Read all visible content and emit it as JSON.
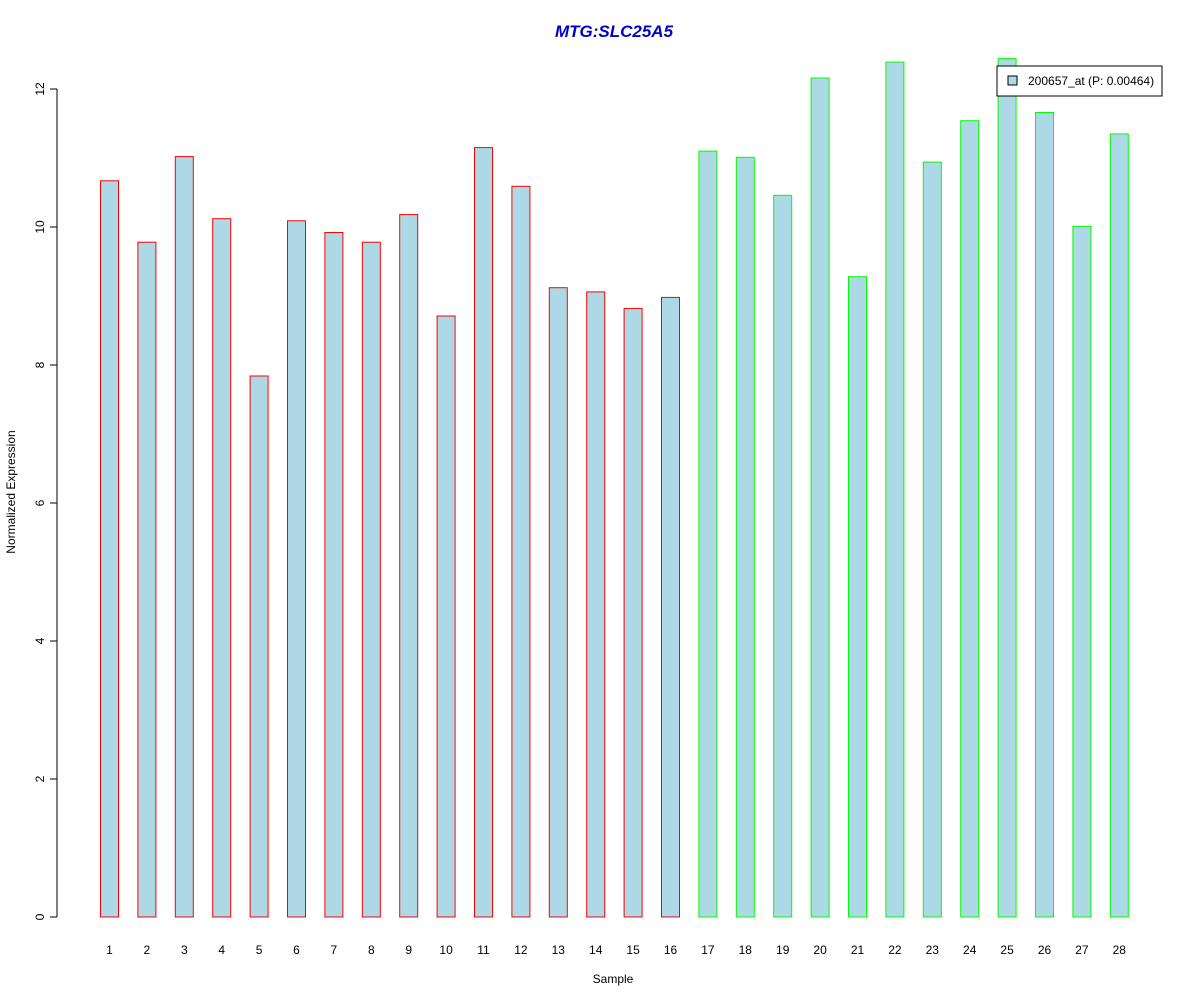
{
  "chart_data": {
    "type": "bar",
    "title": "MTG:SLC25A5",
    "title_color": "#0000CC",
    "xlabel": "Sample",
    "ylabel": "Normalized Expression",
    "ylim": [
      0,
      12.4
    ],
    "yticks": [
      0,
      2,
      4,
      6,
      8,
      10,
      12
    ],
    "grid": false,
    "legend_position": "top-right",
    "categories": [
      "1",
      "2",
      "3",
      "4",
      "5",
      "6",
      "7",
      "8",
      "9",
      "10",
      "11",
      "12",
      "13",
      "14",
      "15",
      "16",
      "17",
      "18",
      "19",
      "20",
      "21",
      "22",
      "23",
      "24",
      "25",
      "26",
      "27",
      "28"
    ],
    "series": [
      {
        "name": "200657_at (P: 0.00464)",
        "fill_color": "#ADD8E6",
        "values": [
          10.67,
          9.78,
          11.02,
          10.12,
          7.84,
          10.09,
          9.92,
          9.78,
          10.18,
          8.71,
          11.15,
          10.59,
          9.12,
          9.06,
          8.82,
          8.98,
          11.1,
          11.01,
          10.46,
          12.16,
          9.28,
          12.39,
          10.94,
          11.54,
          12.44,
          11.66,
          10.01,
          11.35
        ],
        "border_colors": [
          "#FF0000",
          "#FF0000",
          "#FF0000",
          "#FF0000",
          "#FF0000",
          "#FF0000",
          "#FF0000",
          "#FF0000",
          "#FF0000",
          "#FF0000",
          "#FF0000",
          "#FF0000",
          "#FF0000",
          "#FF0000",
          "#FF0000",
          "#FF0000",
          "#00FF00",
          "#00FF00",
          "#00FF00",
          "#00FF00",
          "#00FF00",
          "#00FF00",
          "#00FF00",
          "#00FF00",
          "#00FF00",
          "#00FF00",
          "#00FF00",
          "#00FF00"
        ]
      }
    ]
  }
}
